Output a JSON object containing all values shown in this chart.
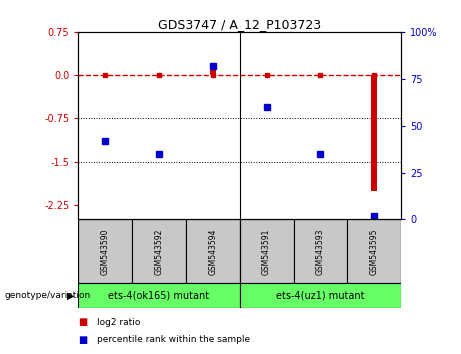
{
  "title": "GDS3747 / A_12_P103723",
  "samples": [
    "GSM543590",
    "GSM543592",
    "GSM543594",
    "GSM543591",
    "GSM543593",
    "GSM543595"
  ],
  "log2_ratio": [
    0.0,
    0.0,
    0.15,
    0.0,
    0.0,
    -2.0
  ],
  "percentile_rank": [
    42,
    35,
    82,
    60,
    35,
    2
  ],
  "ylim_left": [
    -2.5,
    0.75
  ],
  "ylim_right": [
    0,
    100
  ],
  "yticks_left": [
    0.75,
    0.0,
    -0.75,
    -1.5,
    -2.25
  ],
  "yticks_right": [
    100,
    75,
    50,
    25,
    0
  ],
  "hlines": [
    -0.75,
    -1.5
  ],
  "groups": [
    {
      "label": "ets-4(ok165) mutant",
      "color": "#66FF66"
    },
    {
      "label": "ets-4(uz1) mutant",
      "color": "#66FF66"
    }
  ],
  "group_label_prefix": "genotype/variation",
  "legend_items": [
    {
      "label": "log2 ratio",
      "color": "#CC0000"
    },
    {
      "label": "percentile rank within the sample",
      "color": "#0000CC"
    }
  ],
  "bar_color": "#CC0000",
  "dot_color": "#0000CC",
  "line_color": "#CC0000",
  "sample_box_color": "#C8C8C8",
  "genotype_box_color": "#66FF66"
}
